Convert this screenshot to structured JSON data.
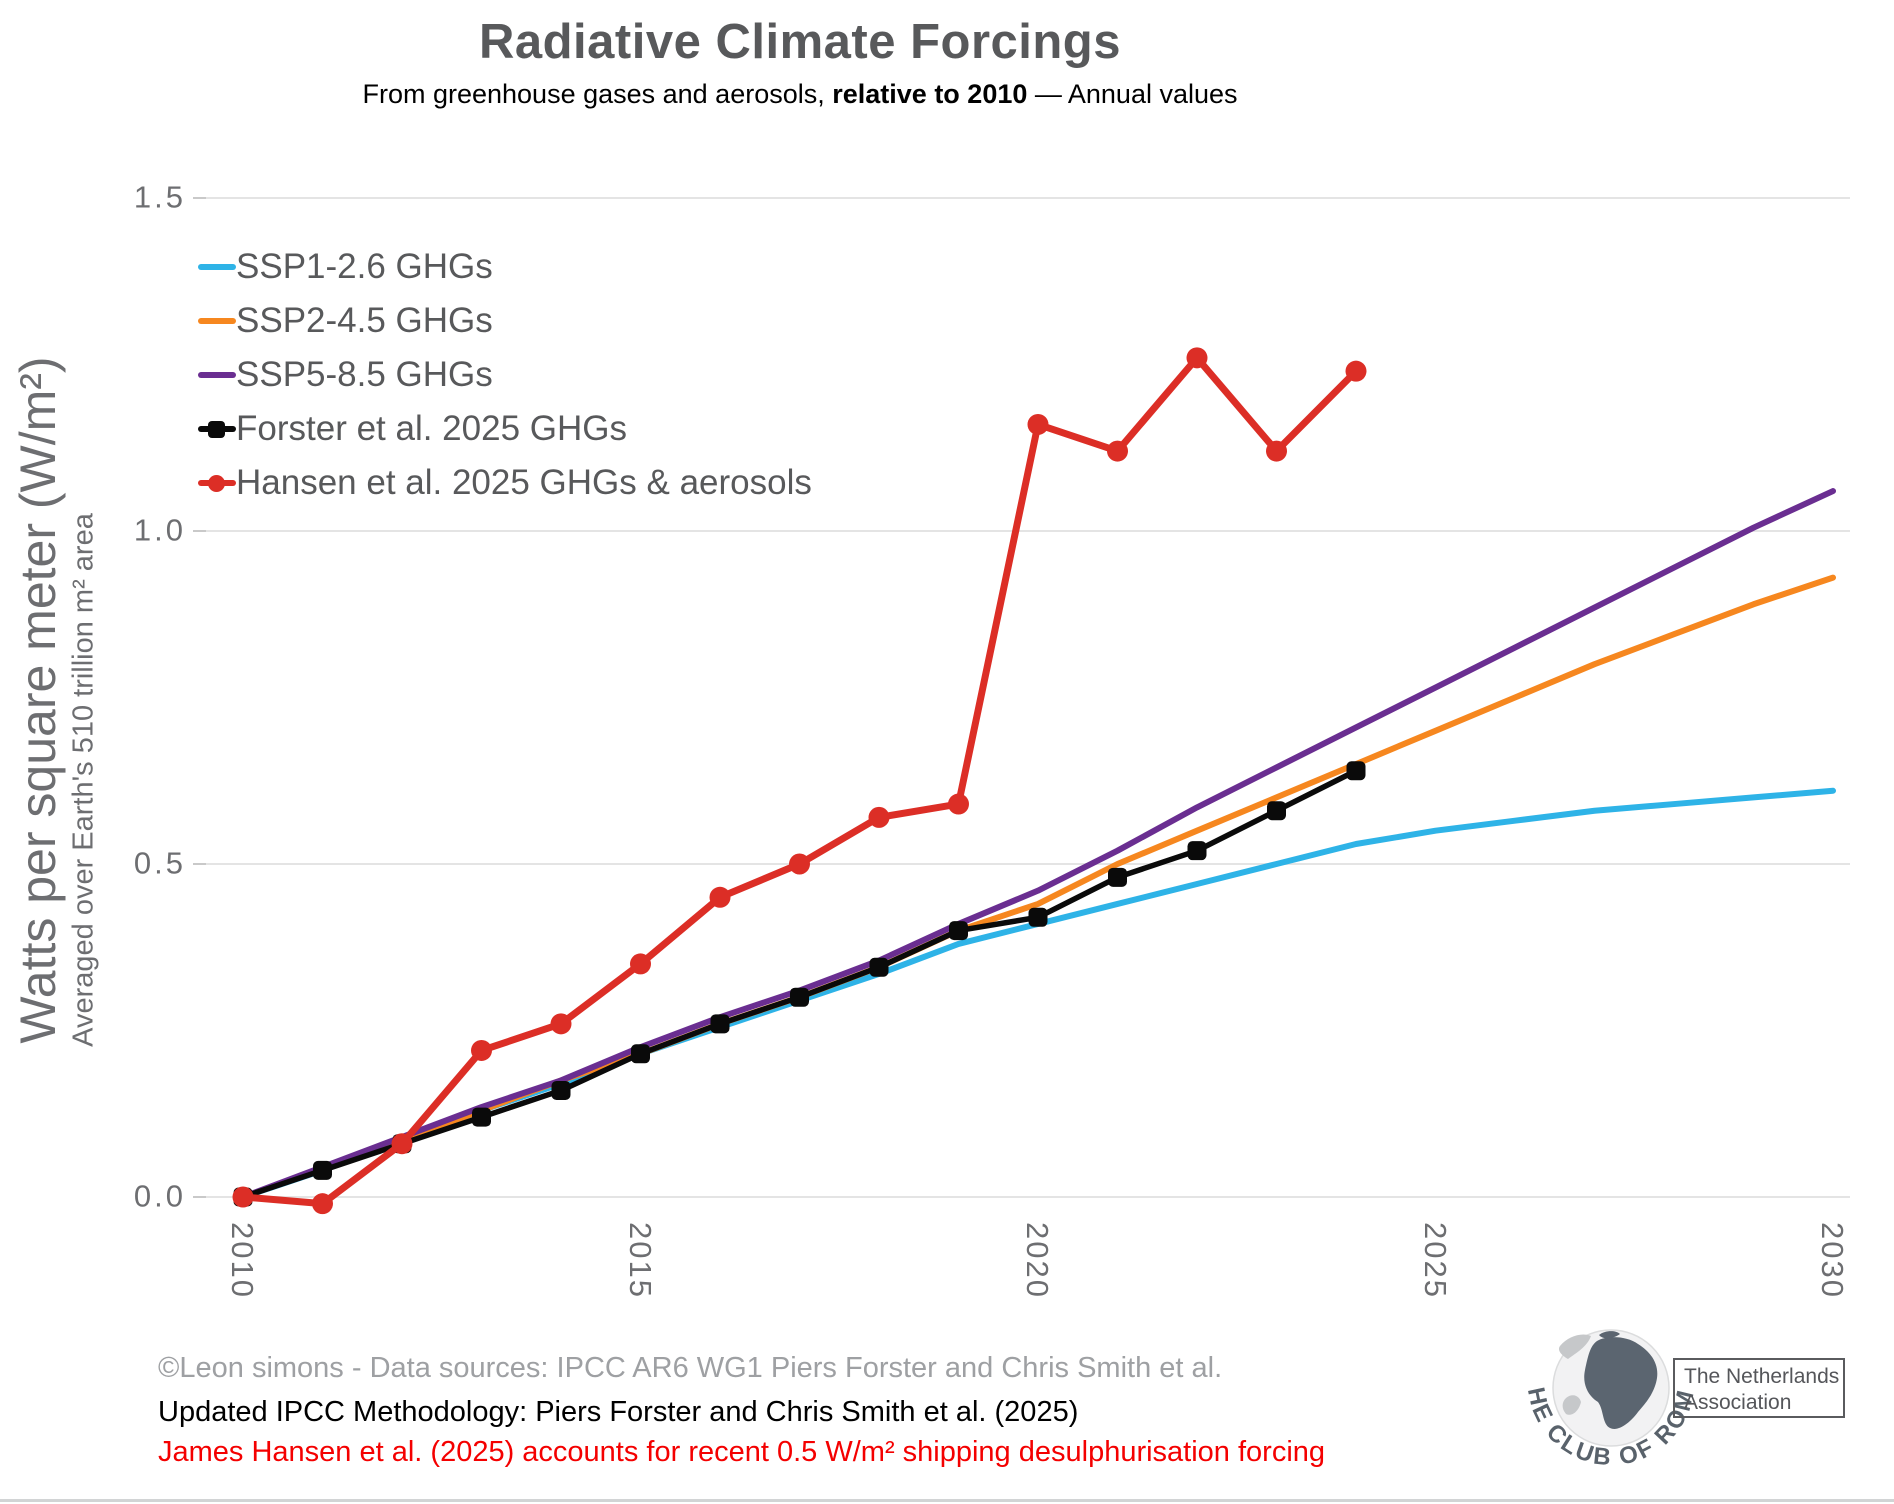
{
  "title": "Radiative Climate Forcings",
  "subtitle": {
    "prefix": "From greenhouse gases and aerosols, ",
    "bold": "relative to 2010",
    "suffix": " — Annual values"
  },
  "y_axis": {
    "label_main": "Watts per square meter (W/m²)",
    "label_sub": "Averaged over Earth's 510 trillion m² area"
  },
  "footer": {
    "line1": "©Leon simons - Data sources: IPCC AR6 WG1 Piers Forster and Chris Smith et al.",
    "line2": "Updated IPCC Methodology: Piers Forster and Chris Smith et al. (2025)",
    "line3": "James Hansen et al. (2025) accounts for recent 0.5 W/m² shipping desulphurisation forcing"
  },
  "logo": {
    "arc_text": "THE CLUB OF ROME",
    "box_line1": "The Netherlands",
    "box_line2": "Association"
  },
  "colors": {
    "title_gray": "#58595B",
    "axis_gray": "#6D6E71",
    "grid": "#E4E4E4",
    "tick_mark": "#C9C9C9",
    "footer_gray": "#9EA0A3",
    "footer_red": "#F40000"
  },
  "chart_data": {
    "type": "line",
    "title": "Radiative Climate Forcings",
    "xlabel": "",
    "ylabel": "Watts per square meter (W/m²)",
    "x_start": 2010,
    "x_end": 2030,
    "ylim": [
      -0.05,
      1.55
    ],
    "grid": "horizontal",
    "legend_position": "top-left",
    "yticks": {
      "values": [
        1.5,
        1.0,
        0.5,
        0.0
      ],
      "labels": [
        "1.5",
        "1.0",
        "0.5",
        "0.0"
      ]
    },
    "xticks": {
      "values": [
        2010,
        2015,
        2020,
        2025,
        2030
      ],
      "labels": [
        "2010",
        "2015",
        "2020",
        "2025",
        "2030"
      ]
    },
    "series": [
      {
        "name": "SSP1-2.6 GHGs",
        "color": "#2EB3E7",
        "marker": "none",
        "values": [
          0.0,
          0.04,
          0.085,
          0.13,
          0.17,
          0.215,
          0.255,
          0.295,
          0.335,
          0.38,
          0.41,
          0.44,
          0.47,
          0.5,
          0.53,
          0.55,
          0.565,
          0.58,
          0.59,
          0.6,
          0.61
        ]
      },
      {
        "name": "SSP2-4.5 GHGs",
        "color": "#F6871F",
        "marker": "none",
        "values": [
          0.0,
          0.042,
          0.085,
          0.13,
          0.175,
          0.215,
          0.26,
          0.3,
          0.345,
          0.4,
          0.44,
          0.5,
          0.55,
          0.6,
          0.65,
          0.7,
          0.75,
          0.8,
          0.845,
          0.89,
          0.93
        ]
      },
      {
        "name": "SSP5-8.5 GHGs",
        "color": "#6A2E91",
        "marker": "none",
        "values": [
          0.0,
          0.045,
          0.09,
          0.135,
          0.175,
          0.225,
          0.27,
          0.31,
          0.355,
          0.41,
          0.46,
          0.52,
          0.585,
          0.645,
          0.705,
          0.765,
          0.825,
          0.885,
          0.945,
          1.005,
          1.06
        ]
      },
      {
        "name": "Forster et al. 2025 GHGs",
        "color": "#0A0A0A",
        "marker": "square",
        "values": [
          0.0,
          0.04,
          0.08,
          0.12,
          0.16,
          0.215,
          0.26,
          0.3,
          0.345,
          0.4,
          0.42,
          0.48,
          0.52,
          0.58,
          0.64
        ]
      },
      {
        "name": "Hansen et al. 2025 GHGs & aerosols",
        "color": "#DC2E26",
        "marker": "circle",
        "values": [
          0.0,
          -0.01,
          0.08,
          0.22,
          0.26,
          0.35,
          0.45,
          0.5,
          0.57,
          0.59,
          1.16,
          1.12,
          1.26,
          1.12,
          1.24
        ]
      }
    ]
  }
}
